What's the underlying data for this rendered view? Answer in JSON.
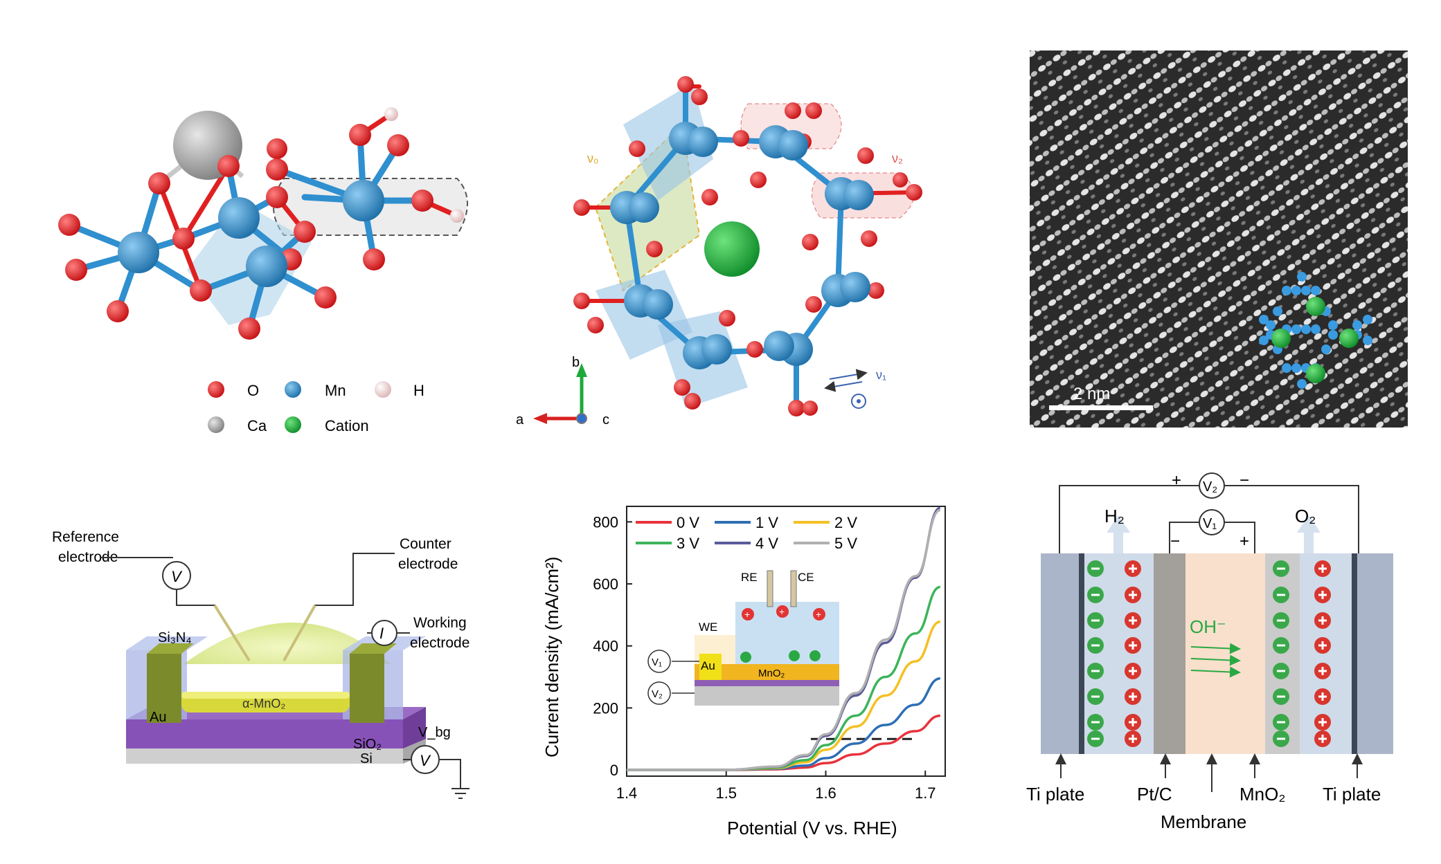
{
  "panel_a": {
    "legend": {
      "o": "O",
      "mn": "Mn",
      "h": "H",
      "ca": "Ca",
      "cation": "Cation"
    },
    "colors": {
      "o": "#e02020",
      "mn": "#2f8fcf",
      "h": "#f3d6d6",
      "ca": "#9a9a9a",
      "cation": "#1ea83c"
    }
  },
  "panel_b": {
    "labels": {
      "v0": "ν₀",
      "v2": "ν₂",
      "v1": "ν₁"
    },
    "axes": {
      "a": "a",
      "b": "b",
      "c": "c"
    }
  },
  "panel_c": {
    "scale_bar": "2 nm"
  },
  "panel_d": {
    "reference_line1": "Reference",
    "reference_line2": "electrode",
    "counter_line1": "Counter",
    "counter_line2": "electrode",
    "working_line1": "Working",
    "working_line2": "electrode",
    "si3n4": "Si₃N₄",
    "au": "Au",
    "channel": "α-MnO₂",
    "sio2": "SiO₂",
    "si": "Si",
    "vbg": "V_bg",
    "v_symbol": "V",
    "i_symbol": "I"
  },
  "chart_data": {
    "type": "line",
    "xlabel": "Potential (V vs. RHE)",
    "ylabel": "Current density (mA/cm²)",
    "xlim": [
      1.4,
      1.72
    ],
    "ylim": [
      -20,
      850
    ],
    "xticks": [
      "1.4",
      "1.5",
      "1.6",
      "1.7"
    ],
    "yticks": [
      "0",
      "200",
      "400",
      "600",
      "800"
    ],
    "legend_position": "top-left",
    "reference_line_y": 100,
    "series": [
      {
        "name": "0 V",
        "color": "#e8323c",
        "points": [
          [
            1.4,
            0
          ],
          [
            1.5,
            0
          ],
          [
            1.55,
            2
          ],
          [
            1.58,
            8
          ],
          [
            1.6,
            22
          ],
          [
            1.63,
            50
          ],
          [
            1.66,
            85
          ],
          [
            1.69,
            125
          ],
          [
            1.715,
            175
          ]
        ]
      },
      {
        "name": "1 V",
        "color": "#2e6fb5",
        "points": [
          [
            1.4,
            0
          ],
          [
            1.5,
            0
          ],
          [
            1.55,
            4
          ],
          [
            1.58,
            14
          ],
          [
            1.6,
            38
          ],
          [
            1.63,
            85
          ],
          [
            1.66,
            145
          ],
          [
            1.69,
            210
          ],
          [
            1.715,
            295
          ]
        ]
      },
      {
        "name": "2 V",
        "color": "#f4c024",
        "points": [
          [
            1.4,
            0
          ],
          [
            1.5,
            0
          ],
          [
            1.55,
            6
          ],
          [
            1.58,
            25
          ],
          [
            1.6,
            65
          ],
          [
            1.63,
            140
          ],
          [
            1.66,
            240
          ],
          [
            1.69,
            350
          ],
          [
            1.715,
            478
          ]
        ]
      },
      {
        "name": "3 V",
        "color": "#3cb45a",
        "points": [
          [
            1.4,
            0
          ],
          [
            1.5,
            0
          ],
          [
            1.55,
            8
          ],
          [
            1.58,
            32
          ],
          [
            1.6,
            80
          ],
          [
            1.63,
            175
          ],
          [
            1.66,
            300
          ],
          [
            1.69,
            440
          ],
          [
            1.715,
            590
          ]
        ]
      },
      {
        "name": "4 V",
        "color": "#5b5a9a",
        "points": [
          [
            1.4,
            0
          ],
          [
            1.5,
            0
          ],
          [
            1.55,
            10
          ],
          [
            1.58,
            45
          ],
          [
            1.6,
            110
          ],
          [
            1.63,
            240
          ],
          [
            1.66,
            410
          ],
          [
            1.69,
            620
          ],
          [
            1.715,
            845
          ]
        ]
      },
      {
        "name": "5 V",
        "color": "#b0b0b0",
        "points": [
          [
            1.4,
            0
          ],
          [
            1.5,
            0
          ],
          [
            1.55,
            11
          ],
          [
            1.58,
            48
          ],
          [
            1.6,
            115
          ],
          [
            1.63,
            248
          ],
          [
            1.66,
            420
          ],
          [
            1.69,
            625
          ],
          [
            1.715,
            838
          ]
        ]
      }
    ],
    "inset": {
      "re": "RE",
      "ce": "CE",
      "we": "WE",
      "au": "Au",
      "mno2": "MnO₂",
      "v1": "V₁",
      "v2": "V₂"
    }
  },
  "panel_f": {
    "v2": "V₂",
    "v1": "V₁",
    "plus": "+",
    "minus": "−",
    "h2": "H₂",
    "o2": "O₂",
    "oh": "OH⁻",
    "ti_plate_left": "Ti plate",
    "ptc": "Pt/C",
    "mno2": "MnO₂",
    "ti_plate_right": "Ti plate",
    "membrane": "Membrane"
  }
}
